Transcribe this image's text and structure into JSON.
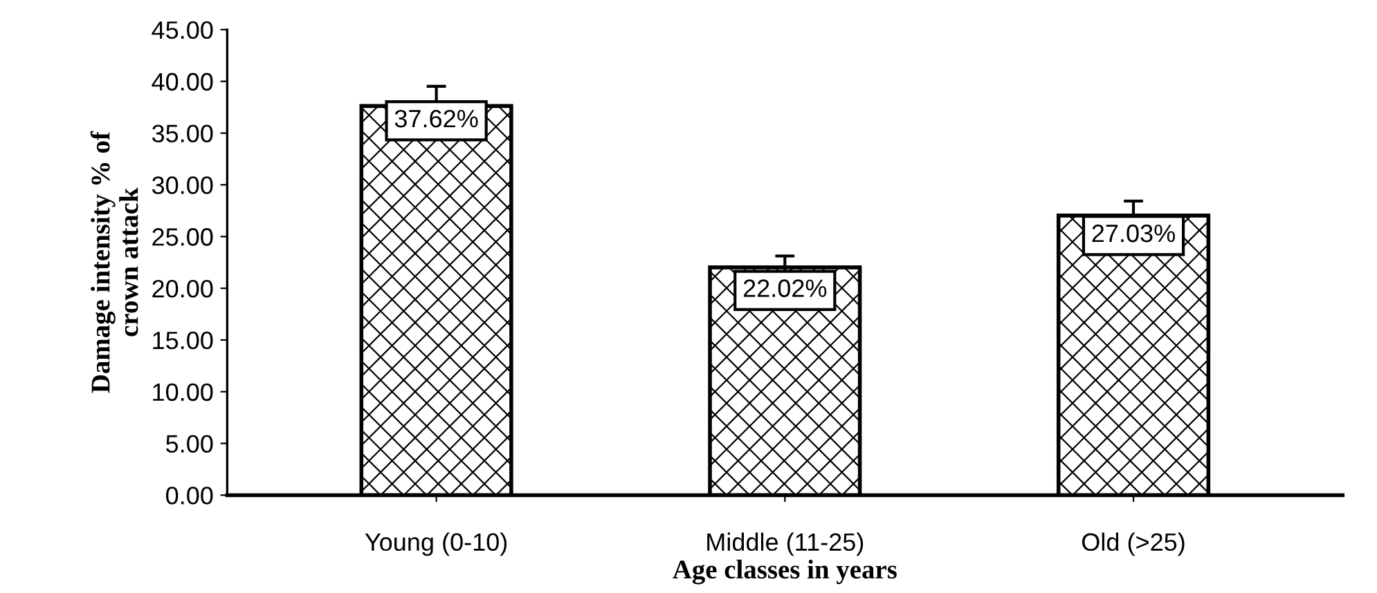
{
  "chart_data": {
    "type": "bar",
    "xlabel": "Age classes in years",
    "ylabel": "Damage intensity % of\ncrown attack",
    "categories": [
      "Young (0-10)",
      "Middle (11-25)",
      "Old (>25)"
    ],
    "values": [
      37.62,
      22.02,
      27.03
    ],
    "errors": [
      1.9,
      1.1,
      1.4
    ],
    "value_labels": [
      "37.62%",
      "22.02%",
      "27.03%"
    ],
    "color": "#000000",
    "ylim": [
      0,
      45
    ],
    "yticks": [
      {
        "value": 0,
        "label": "0.00"
      },
      {
        "value": 5,
        "label": "5.00"
      },
      {
        "value": 10,
        "label": "10.00"
      },
      {
        "value": 15,
        "label": "15.00"
      },
      {
        "value": 20,
        "label": "20.00"
      },
      {
        "value": 25,
        "label": "25.00"
      },
      {
        "value": 30,
        "label": "30.00"
      },
      {
        "value": 35,
        "label": "35.00"
      },
      {
        "value": 40,
        "label": "40.00"
      },
      {
        "value": 45,
        "label": "45.00"
      }
    ],
    "grid": false,
    "legend": false
  }
}
